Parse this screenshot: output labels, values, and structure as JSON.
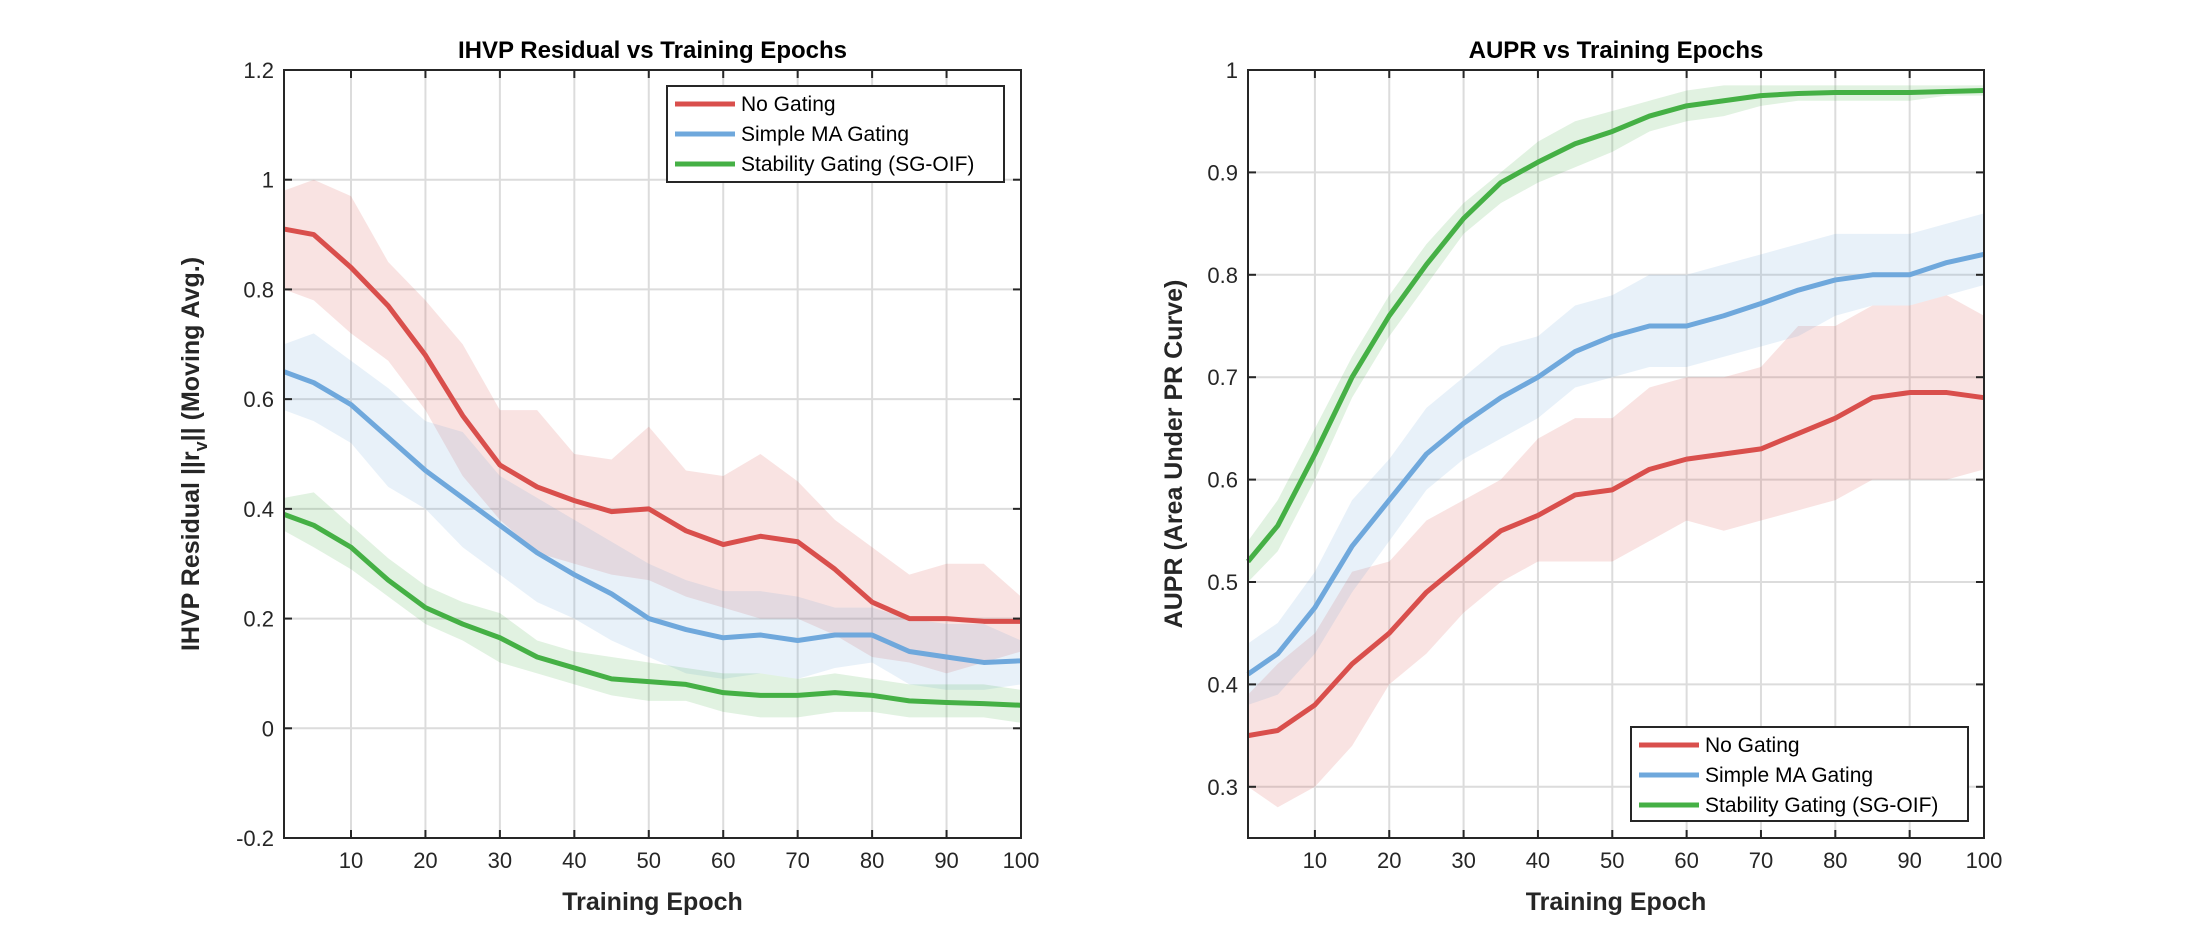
{
  "chart_data": [
    {
      "type": "line",
      "title": "IHVP Residual vs Training Epochs",
      "xlabel": "Training Epoch",
      "ylabel": {
        "prefix": "IHVP Residual ||r",
        "sub": "v",
        "suffix": "|| (Moving Avg.)"
      },
      "xlim": [
        1,
        100
      ],
      "ylim": [
        -0.2,
        1.2
      ],
      "xticks": [
        10,
        20,
        30,
        40,
        50,
        60,
        70,
        80,
        90,
        100
      ],
      "yticks": [
        -0.2,
        0,
        0.2,
        0.4,
        0.6,
        0.8,
        1,
        1.2
      ],
      "ytick_labels": [
        "-0.2",
        "0",
        "0.2",
        "0.4",
        "0.6",
        "0.8",
        "1",
        "1.2"
      ],
      "grid": true,
      "legend_position": "top-right",
      "x": [
        1,
        5,
        10,
        15,
        20,
        25,
        30,
        35,
        40,
        45,
        50,
        55,
        60,
        65,
        70,
        75,
        80,
        85,
        90,
        95,
        100
      ],
      "series": [
        {
          "name": "No Gating",
          "color": "#d94f4c",
          "values": [
            0.91,
            0.9,
            0.84,
            0.77,
            0.68,
            0.57,
            0.48,
            0.44,
            0.415,
            0.395,
            0.4,
            0.36,
            0.335,
            0.35,
            0.34,
            0.29,
            0.23,
            0.2,
            0.2,
            0.195,
            0.195
          ],
          "upper": [
            0.98,
            1.0,
            0.97,
            0.85,
            0.78,
            0.7,
            0.58,
            0.58,
            0.5,
            0.49,
            0.55,
            0.47,
            0.46,
            0.5,
            0.45,
            0.38,
            0.33,
            0.28,
            0.3,
            0.3,
            0.24
          ],
          "lower": [
            0.8,
            0.78,
            0.72,
            0.67,
            0.58,
            0.46,
            0.38,
            0.32,
            0.3,
            0.28,
            0.27,
            0.24,
            0.22,
            0.2,
            0.2,
            0.17,
            0.13,
            0.12,
            0.1,
            0.12,
            0.14
          ]
        },
        {
          "name": "Simple MA Gating",
          "color": "#6fa8dc",
          "values": [
            0.65,
            0.63,
            0.59,
            0.53,
            0.47,
            0.42,
            0.37,
            0.32,
            0.28,
            0.245,
            0.2,
            0.18,
            0.165,
            0.17,
            0.16,
            0.17,
            0.17,
            0.14,
            0.13,
            0.12,
            0.123
          ],
          "upper": [
            0.7,
            0.72,
            0.67,
            0.62,
            0.56,
            0.54,
            0.46,
            0.42,
            0.38,
            0.34,
            0.3,
            0.27,
            0.25,
            0.25,
            0.24,
            0.22,
            0.22,
            0.2,
            0.19,
            0.19,
            0.16
          ],
          "lower": [
            0.58,
            0.56,
            0.52,
            0.44,
            0.4,
            0.33,
            0.28,
            0.23,
            0.2,
            0.16,
            0.13,
            0.1,
            0.09,
            0.1,
            0.09,
            0.11,
            0.12,
            0.08,
            0.07,
            0.07,
            0.08
          ]
        },
        {
          "name": "Stability Gating (SG-OIF)",
          "color": "#45b045",
          "values": [
            0.39,
            0.37,
            0.33,
            0.27,
            0.22,
            0.19,
            0.165,
            0.13,
            0.11,
            0.09,
            0.085,
            0.08,
            0.065,
            0.06,
            0.06,
            0.065,
            0.06,
            0.05,
            0.047,
            0.045,
            0.042
          ],
          "upper": [
            0.42,
            0.43,
            0.37,
            0.31,
            0.26,
            0.23,
            0.21,
            0.16,
            0.14,
            0.13,
            0.12,
            0.11,
            0.1,
            0.1,
            0.09,
            0.1,
            0.09,
            0.08,
            0.08,
            0.08,
            0.07
          ],
          "lower": [
            0.36,
            0.33,
            0.29,
            0.24,
            0.19,
            0.16,
            0.12,
            0.1,
            0.08,
            0.06,
            0.05,
            0.05,
            0.03,
            0.02,
            0.02,
            0.03,
            0.03,
            0.02,
            0.02,
            0.02,
            0.01
          ]
        }
      ]
    },
    {
      "type": "line",
      "title": "AUPR vs Training Epochs",
      "xlabel": "Training Epoch",
      "ylabel": {
        "prefix": "AUPR (Area Under PR Curve)",
        "sub": "",
        "suffix": ""
      },
      "xlim": [
        1,
        100
      ],
      "ylim": [
        0.25,
        1
      ],
      "xticks": [
        10,
        20,
        30,
        40,
        50,
        60,
        70,
        80,
        90,
        100
      ],
      "yticks": [
        0.3,
        0.4,
        0.5,
        0.6,
        0.7,
        0.8,
        0.9,
        1
      ],
      "ytick_labels": [
        "0.3",
        "0.4",
        "0.5",
        "0.6",
        "0.7",
        "0.8",
        "0.9",
        "1"
      ],
      "grid": true,
      "legend_position": "bottom-right",
      "x": [
        1,
        5,
        10,
        15,
        20,
        25,
        30,
        35,
        40,
        45,
        50,
        55,
        60,
        65,
        70,
        75,
        80,
        85,
        90,
        95,
        100
      ],
      "series": [
        {
          "name": "No Gating",
          "color": "#d94f4c",
          "values": [
            0.35,
            0.355,
            0.38,
            0.42,
            0.45,
            0.49,
            0.52,
            0.55,
            0.565,
            0.585,
            0.59,
            0.61,
            0.62,
            0.625,
            0.63,
            0.645,
            0.66,
            0.68,
            0.685,
            0.685,
            0.68
          ],
          "upper": [
            0.39,
            0.42,
            0.45,
            0.51,
            0.52,
            0.56,
            0.58,
            0.6,
            0.64,
            0.66,
            0.66,
            0.69,
            0.7,
            0.7,
            0.71,
            0.75,
            0.75,
            0.77,
            0.77,
            0.78,
            0.76
          ],
          "lower": [
            0.3,
            0.28,
            0.3,
            0.34,
            0.4,
            0.43,
            0.47,
            0.5,
            0.52,
            0.52,
            0.52,
            0.54,
            0.56,
            0.55,
            0.56,
            0.57,
            0.58,
            0.6,
            0.6,
            0.6,
            0.61
          ]
        },
        {
          "name": "Simple MA Gating",
          "color": "#6fa8dc",
          "values": [
            0.41,
            0.43,
            0.475,
            0.535,
            0.58,
            0.625,
            0.655,
            0.68,
            0.7,
            0.725,
            0.74,
            0.75,
            0.75,
            0.76,
            0.772,
            0.785,
            0.795,
            0.8,
            0.8,
            0.812,
            0.82
          ],
          "upper": [
            0.44,
            0.46,
            0.51,
            0.58,
            0.62,
            0.67,
            0.7,
            0.73,
            0.74,
            0.77,
            0.78,
            0.8,
            0.8,
            0.81,
            0.82,
            0.83,
            0.84,
            0.84,
            0.84,
            0.85,
            0.86
          ],
          "lower": [
            0.38,
            0.39,
            0.43,
            0.49,
            0.54,
            0.59,
            0.62,
            0.64,
            0.66,
            0.69,
            0.7,
            0.71,
            0.71,
            0.72,
            0.73,
            0.74,
            0.76,
            0.77,
            0.77,
            0.78,
            0.79
          ]
        },
        {
          "name": "Stability Gating (SG-OIF)",
          "color": "#45b045",
          "values": [
            0.52,
            0.555,
            0.625,
            0.7,
            0.76,
            0.81,
            0.855,
            0.89,
            0.91,
            0.928,
            0.94,
            0.955,
            0.965,
            0.97,
            0.975,
            0.977,
            0.978,
            0.978,
            0.978,
            0.979,
            0.98
          ],
          "upper": [
            0.54,
            0.58,
            0.65,
            0.72,
            0.78,
            0.83,
            0.87,
            0.9,
            0.93,
            0.95,
            0.96,
            0.97,
            0.98,
            0.985,
            0.985,
            0.985,
            0.985,
            0.985,
            0.985,
            0.985,
            0.985
          ],
          "lower": [
            0.5,
            0.53,
            0.6,
            0.68,
            0.74,
            0.79,
            0.84,
            0.87,
            0.89,
            0.905,
            0.92,
            0.94,
            0.95,
            0.955,
            0.965,
            0.97,
            0.97,
            0.97,
            0.97,
            0.975,
            0.975
          ]
        }
      ]
    }
  ]
}
